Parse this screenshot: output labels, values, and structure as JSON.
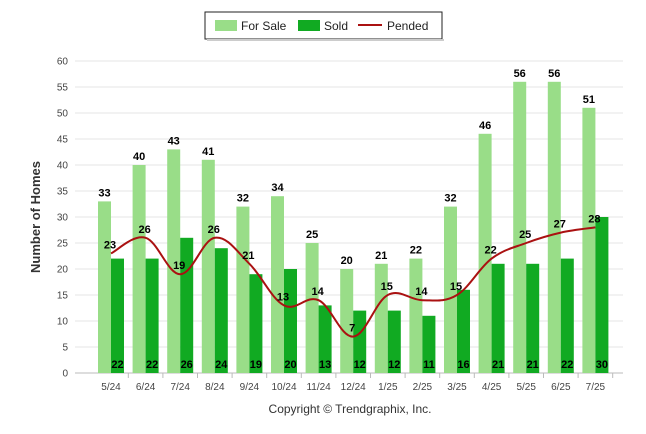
{
  "chart_data": {
    "type": "bar",
    "categories": [
      "5/24",
      "6/24",
      "7/24",
      "8/24",
      "9/24",
      "10/24",
      "11/24",
      "12/24",
      "1/25",
      "2/25",
      "3/25",
      "4/25",
      "5/25",
      "6/25",
      "7/25"
    ],
    "series": [
      {
        "name": "For Sale",
        "kind": "bar",
        "color": "#99dd88",
        "values": [
          33,
          40,
          43,
          41,
          32,
          34,
          25,
          20,
          21,
          22,
          32,
          46,
          56,
          56,
          51
        ]
      },
      {
        "name": "Sold",
        "kind": "bar",
        "color": "#11aa22",
        "values": [
          22,
          22,
          26,
          24,
          19,
          20,
          13,
          12,
          12,
          11,
          16,
          21,
          21,
          22,
          30
        ]
      },
      {
        "name": "Pended",
        "kind": "line",
        "color": "#aa1111",
        "values": [
          23,
          26,
          19,
          26,
          21,
          13,
          14,
          7,
          15,
          14,
          15,
          22,
          25,
          27,
          28
        ]
      }
    ],
    "title": "",
    "xlabel": "",
    "ylabel": "Number of Homes",
    "ylim": [
      0,
      60
    ],
    "yticks": [
      0,
      5,
      10,
      15,
      20,
      25,
      30,
      35,
      40,
      45,
      50,
      55,
      60
    ],
    "grid": true,
    "legend_position": "top-center",
    "credit": "Copyright © Trendgraphix, Inc."
  }
}
